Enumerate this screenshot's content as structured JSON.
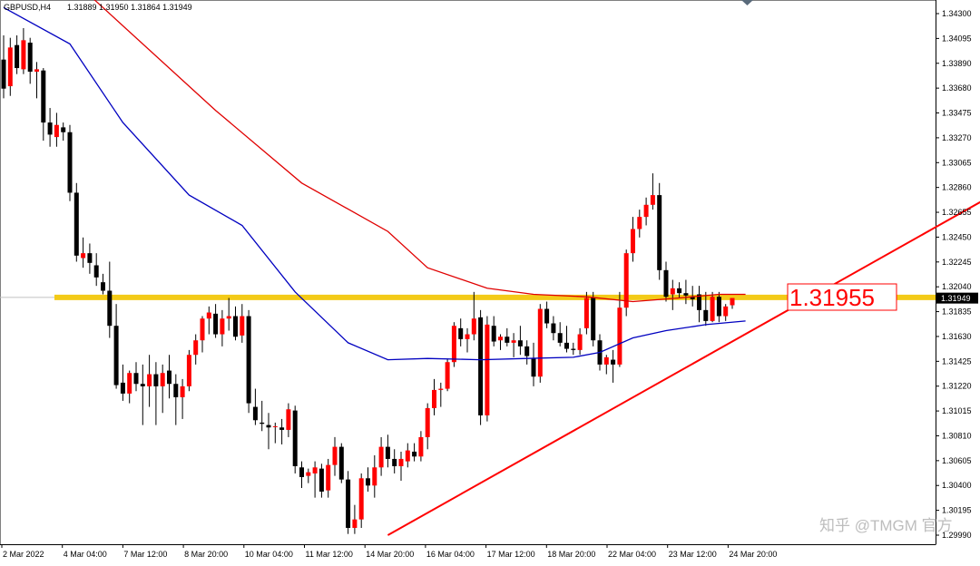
{
  "header": {
    "symbol_tf": "GBPUSD,H4",
    "ohlc": "1.31889 1.31950 1.31864 1.31949"
  },
  "watermark": "知乎 @TMGM 官方",
  "colors": {
    "bull": "#ff0000",
    "bear": "#000000",
    "ma_red": "#e00000",
    "ma_blue": "#0000c0",
    "level_line": "#f2c500",
    "trendline": "#ff0000",
    "price_tag": "#000000"
  },
  "chart_data": {
    "type": "candlestick",
    "symbol": "GBPUSD",
    "timeframe": "H4",
    "y_ticks": [
      "1.34300",
      "1.34095",
      "1.33890",
      "1.33680",
      "1.33475",
      "1.33270",
      "1.33065",
      "1.32860",
      "1.32655",
      "1.32450",
      "1.32245",
      "1.32040",
      "1.31835",
      "1.31630",
      "1.31425",
      "1.31220",
      "1.31015",
      "1.30810",
      "1.30605",
      "1.30400",
      "1.30195",
      "1.29990"
    ],
    "ylim": [
      1.2993,
      1.3435
    ],
    "x_ticks": [
      "2 Mar 2022",
      "4 Mar 04:00",
      "7 Mar 12:00",
      "8 Mar 20:00",
      "10 Mar 04:00",
      "11 Mar 12:00",
      "14 Mar 20:00",
      "16 Mar 04:00",
      "17 Mar 12:00",
      "18 Mar 20:00",
      "22 Mar 04:00",
      "23 Mar 12:00",
      "24 Mar 20:00"
    ],
    "current_price_label": "1.31949",
    "horizontal_level": {
      "value": 1.31955,
      "label": "1.31955"
    },
    "trendline": {
      "from": [
        58,
        1.2999
      ],
      "to": [
        148,
        1.3276
      ]
    },
    "candles": [
      [
        1.3392,
        1.3412,
        1.336,
        1.3368
      ],
      [
        1.337,
        1.341,
        1.3362,
        1.3402
      ],
      [
        1.3404,
        1.3412,
        1.338,
        1.3385
      ],
      [
        1.3384,
        1.3418,
        1.338,
        1.3408
      ],
      [
        1.3406,
        1.341,
        1.3372,
        1.3382
      ],
      [
        1.3382,
        1.339,
        1.336,
        1.3384
      ],
      [
        1.3383,
        1.3385,
        1.3325,
        1.334
      ],
      [
        1.334,
        1.3352,
        1.332,
        1.333
      ],
      [
        1.3328,
        1.3348,
        1.332,
        1.3338
      ],
      [
        1.3336,
        1.334,
        1.3325,
        1.3332
      ],
      [
        1.3332,
        1.3338,
        1.3275,
        1.3282
      ],
      [
        1.3282,
        1.329,
        1.3225,
        1.323
      ],
      [
        1.3228,
        1.3245,
        1.322,
        1.3232
      ],
      [
        1.3232,
        1.324,
        1.3215,
        1.3224
      ],
      [
        1.3222,
        1.3232,
        1.3205,
        1.3212
      ],
      [
        1.3208,
        1.3215,
        1.3198,
        1.3201
      ],
      [
        1.3201,
        1.3225,
        1.3162,
        1.3172
      ],
      [
        1.3172,
        1.319,
        1.312,
        1.3123
      ],
      [
        1.3125,
        1.314,
        1.311,
        1.3116
      ],
      [
        1.3116,
        1.3135,
        1.3108,
        1.3133
      ],
      [
        1.3133,
        1.3142,
        1.3118,
        1.3124
      ],
      [
        1.3124,
        1.314,
        1.309,
        1.3122
      ],
      [
        1.3122,
        1.3148,
        1.3105,
        1.3132
      ],
      [
        1.3132,
        1.3142,
        1.309,
        1.3122
      ],
      [
        1.3122,
        1.314,
        1.31,
        1.3133
      ],
      [
        1.3135,
        1.3148,
        1.3112,
        1.3124
      ],
      [
        1.3124,
        1.3132,
        1.309,
        1.3113
      ],
      [
        1.3113,
        1.3128,
        1.3095,
        1.3122
      ],
      [
        1.3122,
        1.3152,
        1.3118,
        1.3148
      ],
      [
        1.3148,
        1.3165,
        1.314,
        1.316
      ],
      [
        1.316,
        1.318,
        1.315,
        1.3178
      ],
      [
        1.3178,
        1.3188,
        1.3165,
        1.3183
      ],
      [
        1.3182,
        1.319,
        1.3162,
        1.3165
      ],
      [
        1.3165,
        1.3185,
        1.3155,
        1.3178
      ],
      [
        1.3178,
        1.3195,
        1.3168,
        1.318
      ],
      [
        1.318,
        1.3188,
        1.316,
        1.3163
      ],
      [
        1.3164,
        1.319,
        1.3158,
        1.318
      ],
      [
        1.318,
        1.3185,
        1.31,
        1.3108
      ],
      [
        1.3105,
        1.312,
        1.309,
        1.3094
      ],
      [
        1.3092,
        1.311,
        1.3085,
        1.3091
      ],
      [
        1.309,
        1.31,
        1.307,
        1.3088
      ],
      [
        1.3089,
        1.3092,
        1.3075,
        1.3089
      ],
      [
        1.3088,
        1.3095,
        1.3074,
        1.3086
      ],
      [
        1.3086,
        1.3108,
        1.308,
        1.3103
      ],
      [
        1.3102,
        1.3106,
        1.305,
        1.3056
      ],
      [
        1.3055,
        1.306,
        1.3038,
        1.3047
      ],
      [
        1.3048,
        1.3054,
        1.3042,
        1.3051
      ],
      [
        1.305,
        1.306,
        1.303,
        1.3055
      ],
      [
        1.3054,
        1.3058,
        1.303,
        1.3035
      ],
      [
        1.3036,
        1.3062,
        1.303,
        1.3057
      ],
      [
        1.3057,
        1.308,
        1.3048,
        1.3072
      ],
      [
        1.3072,
        1.3075,
        1.3042,
        1.3045
      ],
      [
        1.3045,
        1.3052,
        1.3,
        1.3005
      ],
      [
        1.3005,
        1.3024,
        1.3,
        1.3012
      ],
      [
        1.3012,
        1.305,
        1.3005,
        1.3046
      ],
      [
        1.3046,
        1.3055,
        1.3035,
        1.304
      ],
      [
        1.304,
        1.3065,
        1.303,
        1.3055
      ],
      [
        1.3055,
        1.308,
        1.3048,
        1.3072
      ],
      [
        1.3072,
        1.3082,
        1.3055,
        1.3062
      ],
      [
        1.3062,
        1.307,
        1.305,
        1.3056
      ],
      [
        1.3056,
        1.3068,
        1.3044,
        1.3062
      ],
      [
        1.306,
        1.3075,
        1.3055,
        1.3069
      ],
      [
        1.3068,
        1.3075,
        1.306,
        1.3064
      ],
      [
        1.3064,
        1.3085,
        1.306,
        1.308
      ],
      [
        1.308,
        1.3108,
        1.307,
        1.3104
      ],
      [
        1.3104,
        1.3128,
        1.3098,
        1.3119
      ],
      [
        1.3119,
        1.3125,
        1.3105,
        1.312
      ],
      [
        1.312,
        1.3145,
        1.3118,
        1.3142
      ],
      [
        1.3142,
        1.3175,
        1.3138,
        1.3172
      ],
      [
        1.317,
        1.3178,
        1.3155,
        1.3161
      ],
      [
        1.3161,
        1.317,
        1.315,
        1.3165
      ],
      [
        1.3165,
        1.32,
        1.316,
        1.3178
      ],
      [
        1.3179,
        1.3185,
        1.309,
        1.3098
      ],
      [
        1.3098,
        1.318,
        1.3093,
        1.3173
      ],
      [
        1.3172,
        1.318,
        1.3155,
        1.3159
      ],
      [
        1.316,
        1.3165,
        1.3152,
        1.3163
      ],
      [
        1.3163,
        1.317,
        1.3155,
        1.3158
      ],
      [
        1.3158,
        1.3166,
        1.3146,
        1.316
      ],
      [
        1.316,
        1.3172,
        1.3148,
        1.3155
      ],
      [
        1.3155,
        1.316,
        1.314,
        1.3147
      ],
      [
        1.3145,
        1.3158,
        1.3122,
        1.313
      ],
      [
        1.313,
        1.319,
        1.3125,
        1.3186
      ],
      [
        1.3186,
        1.3192,
        1.317,
        1.3174
      ],
      [
        1.3174,
        1.318,
        1.316,
        1.3166
      ],
      [
        1.3166,
        1.3175,
        1.3155,
        1.3158
      ],
      [
        1.3158,
        1.3172,
        1.315,
        1.3153
      ],
      [
        1.3153,
        1.3158,
        1.3148,
        1.3152
      ],
      [
        1.3152,
        1.317,
        1.3148,
        1.3165
      ],
      [
        1.317,
        1.32,
        1.3165,
        1.3195
      ],
      [
        1.3195,
        1.32,
        1.3155,
        1.316
      ],
      [
        1.316,
        1.3165,
        1.3135,
        1.314
      ],
      [
        1.314,
        1.3148,
        1.3132,
        1.3146
      ],
      [
        1.3144,
        1.3152,
        1.3125,
        1.314
      ],
      [
        1.314,
        1.32,
        1.3138,
        1.3187
      ],
      [
        1.3187,
        1.3235,
        1.318,
        1.3232
      ],
      [
        1.3232,
        1.3262,
        1.3225,
        1.3252
      ],
      [
        1.3252,
        1.3268,
        1.3245,
        1.3262
      ],
      [
        1.3262,
        1.3278,
        1.3255,
        1.3272
      ],
      [
        1.3272,
        1.3298,
        1.3268,
        1.328
      ],
      [
        1.328,
        1.329,
        1.321,
        1.3218
      ],
      [
        1.3218,
        1.3225,
        1.3192,
        1.3196
      ],
      [
        1.3198,
        1.321,
        1.3185,
        1.3203
      ],
      [
        1.3203,
        1.3208,
        1.3195,
        1.3199
      ],
      [
        1.3199,
        1.321,
        1.319,
        1.3197
      ],
      [
        1.3196,
        1.3205,
        1.3188,
        1.3194
      ],
      [
        1.3198,
        1.3205,
        1.3175,
        1.3185
      ],
      [
        1.3185,
        1.32,
        1.3172,
        1.3176
      ],
      [
        1.3176,
        1.32,
        1.3175,
        1.3196
      ],
      [
        1.3196,
        1.32,
        1.3175,
        1.318
      ],
      [
        1.318,
        1.319,
        1.3176,
        1.3188
      ],
      [
        1.3189,
        1.3195,
        1.3186,
        1.3195
      ]
    ],
    "ma_red": [
      [
        0,
        1.351
      ],
      [
        14,
        1.344
      ],
      [
        32,
        1.335
      ],
      [
        45,
        1.329
      ],
      [
        58,
        1.325
      ],
      [
        64,
        1.322
      ],
      [
        73,
        1.3203
      ],
      [
        80,
        1.3198
      ],
      [
        88,
        1.3196
      ],
      [
        95,
        1.3192
      ],
      [
        102,
        1.3195
      ],
      [
        108,
        1.3198
      ],
      [
        112,
        1.3198
      ]
    ],
    "ma_blue": [
      [
        0,
        1.3435
      ],
      [
        10,
        1.3405
      ],
      [
        18,
        1.334
      ],
      [
        28,
        1.328
      ],
      [
        36,
        1.3255
      ],
      [
        44,
        1.32
      ],
      [
        52,
        1.3158
      ],
      [
        58,
        1.3144
      ],
      [
        64,
        1.3145
      ],
      [
        72,
        1.3144
      ],
      [
        79,
        1.3145
      ],
      [
        86,
        1.3146
      ],
      [
        90,
        1.315
      ],
      [
        95,
        1.3162
      ],
      [
        100,
        1.3168
      ],
      [
        106,
        1.3173
      ],
      [
        112,
        1.3176
      ]
    ]
  }
}
